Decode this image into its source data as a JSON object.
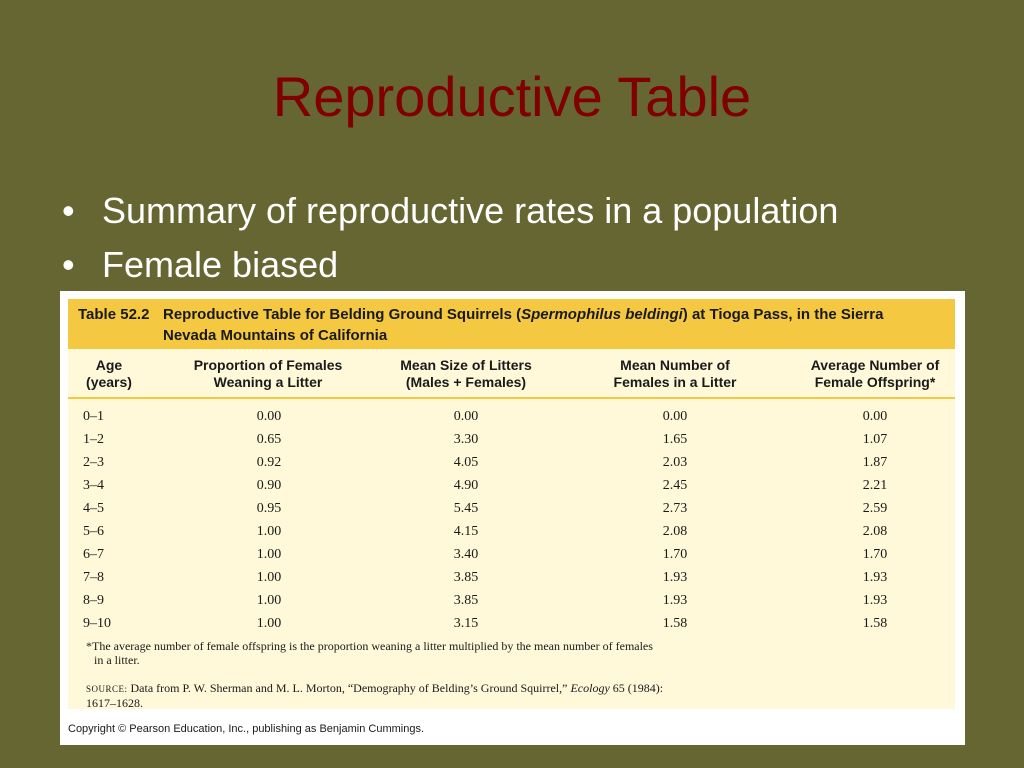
{
  "slide": {
    "title": "Reproductive Table",
    "bullets": [
      "Summary of reproductive rates in a population",
      "Female biased"
    ]
  },
  "table": {
    "label": "Table 52.2",
    "title_pre": "Reproductive Table for Belding Ground Squirrels (",
    "title_species": "Spermophilus beldingi",
    "title_post": ") at Tioga Pass, in the Sierra Nevada Mountains of California",
    "headers": [
      [
        "Age",
        "(years)"
      ],
      [
        "Proportion of Females",
        "Weaning a Litter"
      ],
      [
        "Mean Size of Litters",
        "(Males + Females)"
      ],
      [
        "Mean Number of",
        "Females in a Litter"
      ],
      [
        "Average Number of",
        "Female Offspring*"
      ]
    ],
    "rows": [
      [
        "0–1",
        "0.00",
        "0.00",
        "0.00",
        "0.00"
      ],
      [
        "1–2",
        "0.65",
        "3.30",
        "1.65",
        "1.07"
      ],
      [
        "2–3",
        "0.92",
        "4.05",
        "2.03",
        "1.87"
      ],
      [
        "3–4",
        "0.90",
        "4.90",
        "2.45",
        "2.21"
      ],
      [
        "4–5",
        "0.95",
        "5.45",
        "2.73",
        "2.59"
      ],
      [
        "5–6",
        "1.00",
        "4.15",
        "2.08",
        "2.08"
      ],
      [
        "6–7",
        "1.00",
        "3.40",
        "1.70",
        "1.70"
      ],
      [
        "7–8",
        "1.00",
        "3.85",
        "1.93",
        "1.93"
      ],
      [
        "8–9",
        "1.00",
        "3.85",
        "1.93",
        "1.93"
      ],
      [
        "9–10",
        "1.00",
        "3.15",
        "1.58",
        "1.58"
      ]
    ],
    "footnote_line1": "*The average number of female offspring is the proportion weaning a litter multiplied by the mean number of females",
    "footnote_line2": "in a litter.",
    "source_label": "SOURCE:",
    "source_text": " Data from P. W. Sherman and M. L. Morton, “Demography of Belding’s Ground Squirrel,” ",
    "source_journal": "Ecology",
    "source_tail": " 65 (1984):",
    "source_line2": "1617–1628.",
    "copyright": "Copyright © Pearson Education, Inc., publishing as Benjamin Cummings."
  }
}
